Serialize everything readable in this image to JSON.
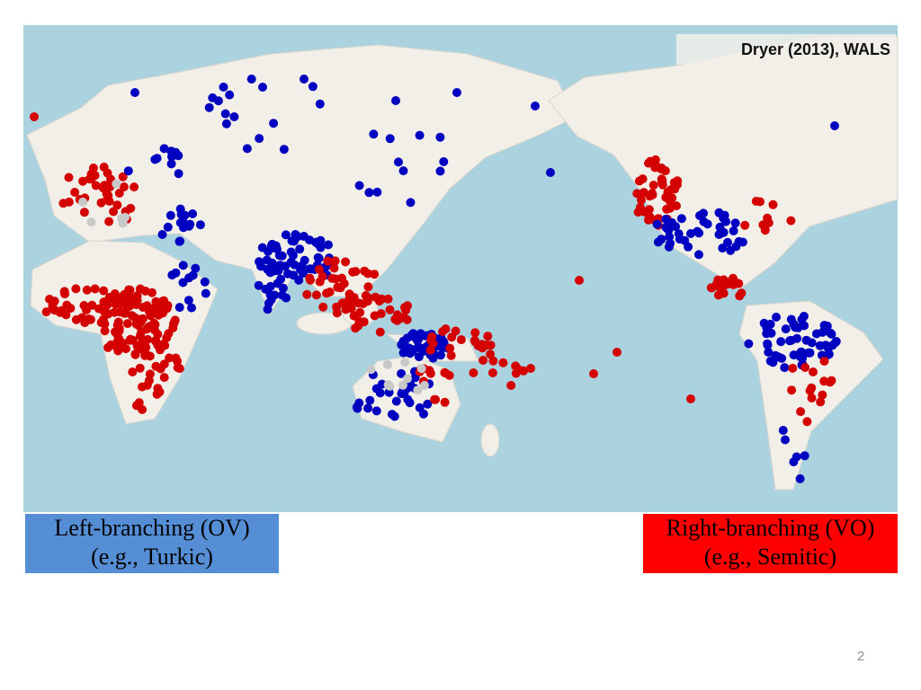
{
  "source": "Dryer (2013), WALS",
  "legend": [
    {
      "label": "Left-branching (OV)",
      "example": "(e.g., Turkic)"
    },
    {
      "label": "Right-branching (VO)",
      "example": "(e.g., Semitic)"
    }
  ],
  "page_number": "2"
}
